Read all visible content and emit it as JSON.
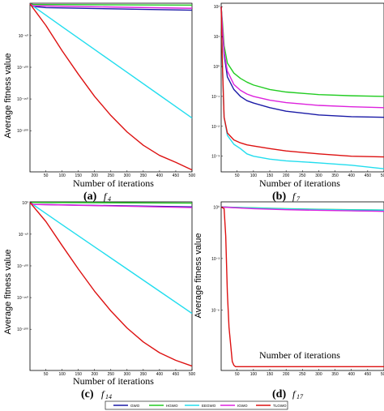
{
  "colors": {
    "GWO": "#1a1aa6",
    "HGWO": "#22cc22",
    "EEGWO": "#22ddee",
    "IGWO": "#dd22dd",
    "TLGWO": "#dd1111"
  },
  "legend": [
    "GWO",
    "HGWO",
    "EEGWO",
    "IGWO",
    "TLGWO"
  ],
  "chart_data": [
    {
      "type": "line",
      "panel": "a",
      "caption_letter": "(a)",
      "caption_func": "f",
      "caption_sub": "4",
      "xlabel": "Number of iterations",
      "ylabel": "Average fitness value",
      "xlim": [
        1,
        500
      ],
      "xticks": [
        50,
        100,
        150,
        200,
        250,
        300,
        350,
        400,
        450,
        500
      ],
      "yscale": "log",
      "ylim": [
        1e-265,
        10.0
      ],
      "yticks": [
        {
          "v": 1e-50,
          "label": "10⁻⁵⁰"
        },
        {
          "v": 1e-100,
          "label": "10⁻¹⁰⁰"
        },
        {
          "v": 1e-150,
          "label": "10⁻¹⁵⁰"
        },
        {
          "v": 1e-200,
          "label": "10⁻²⁰⁰"
        }
      ],
      "series": [
        {
          "name": "GWO",
          "x": [
            1,
            10,
            50,
            500
          ],
          "y": [
            1.0,
            0.0001,
            1e-06,
            1e-10
          ]
        },
        {
          "name": "HGWO",
          "x": [
            1,
            10,
            500
          ],
          "y": [
            1.0,
            0.1,
            0.01
          ]
        },
        {
          "name": "EEGWO",
          "x": [
            1,
            100,
            200,
            300,
            400,
            500
          ],
          "y": [
            1.0,
            1e-36,
            1e-72,
            1e-108,
            1e-144,
            1e-180
          ]
        },
        {
          "name": "IGWO",
          "x": [
            1,
            10,
            500
          ],
          "y": [
            1.0,
            0.001,
            1e-07
          ]
        },
        {
          "name": "TLGWO",
          "x": [
            1,
            50,
            100,
            150,
            200,
            250,
            300,
            350,
            400,
            450,
            500
          ],
          "y": [
            1.0,
            1e-34,
            1e-74,
            1e-111,
            1e-146,
            1e-176,
            1e-202,
            1e-223,
            1e-239,
            1e-250,
            1e-262
          ]
        }
      ]
    },
    {
      "type": "line",
      "panel": "b",
      "caption_letter": "(b)",
      "caption_func": "f",
      "caption_sub": "7",
      "xlabel": "Number of iterations",
      "ylabel": "",
      "xlim": [
        1,
        500
      ],
      "xticks": [
        50,
        100,
        150,
        200,
        250,
        300,
        350,
        400,
        450,
        500
      ],
      "yscale": "log",
      "ylim": [
        0.0003,
        130.0
      ],
      "yticks": [
        {
          "v": 100.0,
          "label": "10²"
        },
        {
          "v": 10.0,
          "label": "10¹"
        },
        {
          "v": 1.0,
          "label": "10⁰"
        },
        {
          "v": 0.1,
          "label": "10⁻¹"
        },
        {
          "v": 0.01,
          "label": "10⁻²"
        },
        {
          "v": 0.001,
          "label": "10⁻³"
        }
      ],
      "series": [
        {
          "name": "GWO",
          "x": [
            1,
            5,
            10,
            20,
            40,
            60,
            80,
            100,
            150,
            200,
            300,
            400,
            500
          ],
          "y": [
            100,
            20,
            2.5,
            0.45,
            0.17,
            0.1,
            0.072,
            0.06,
            0.042,
            0.032,
            0.024,
            0.021,
            0.02
          ]
        },
        {
          "name": "HGWO",
          "x": [
            1,
            5,
            10,
            20,
            40,
            60,
            80,
            100,
            150,
            200,
            300,
            400,
            500
          ],
          "y": [
            100,
            30,
            5,
            1.3,
            0.6,
            0.4,
            0.3,
            0.24,
            0.17,
            0.14,
            0.115,
            0.105,
            0.1
          ]
        },
        {
          "name": "EEGWO",
          "x": [
            1,
            5,
            10,
            20,
            40,
            60,
            80,
            100,
            150,
            200,
            300,
            400,
            500
          ],
          "y": [
            100,
            1,
            0.02,
            0.005,
            0.0025,
            0.0018,
            0.0012,
            0.001,
            0.0008,
            0.0007,
            0.0006,
            0.0005,
            0.00038
          ]
        },
        {
          "name": "IGWO",
          "x": [
            1,
            5,
            10,
            20,
            40,
            60,
            80,
            100,
            150,
            200,
            300,
            400,
            500
          ],
          "y": [
            100,
            20,
            3,
            0.7,
            0.25,
            0.16,
            0.12,
            0.1,
            0.075,
            0.062,
            0.05,
            0.045,
            0.042
          ]
        },
        {
          "name": "TLGWO",
          "x": [
            1,
            5,
            10,
            20,
            40,
            60,
            80,
            100,
            150,
            200,
            300,
            400,
            500
          ],
          "y": [
            100,
            1,
            0.02,
            0.006,
            0.0035,
            0.0028,
            0.0024,
            0.0022,
            0.0018,
            0.0015,
            0.0012,
            0.001,
            0.00095
          ]
        }
      ]
    },
    {
      "type": "line",
      "panel": "c",
      "caption_letter": "(c)",
      "caption_func": "f",
      "caption_sub": "14",
      "xlabel": "Number of iterations",
      "ylabel": "Average fitness value",
      "xlim": [
        1,
        500
      ],
      "xticks": [
        50,
        100,
        150,
        200,
        250,
        300,
        350,
        400,
        450,
        500
      ],
      "yscale": "log",
      "ylim": [
        1e-265,
        10.0
      ],
      "yticks": [
        {
          "v": 1.0,
          "label": "10⁰"
        },
        {
          "v": 1e-50,
          "label": "10⁻⁵⁰"
        },
        {
          "v": 1e-100,
          "label": "10⁻¹⁰⁰"
        },
        {
          "v": 1e-150,
          "label": "10⁻¹⁵⁰"
        },
        {
          "v": 1e-200,
          "label": "10⁻²⁰⁰"
        }
      ],
      "series": [
        {
          "name": "GWO",
          "x": [
            1,
            10,
            500
          ],
          "y": [
            1.0,
            0.001,
            1e-07
          ]
        },
        {
          "name": "HGWO",
          "x": [
            1,
            500
          ],
          "y": [
            1.0,
            0.1
          ]
        },
        {
          "name": "EEGWO",
          "x": [
            1,
            100,
            200,
            300,
            400,
            500
          ],
          "y": [
            1.0,
            1e-35,
            1e-70,
            1e-105,
            1e-140,
            1e-175
          ]
        },
        {
          "name": "IGWO",
          "x": [
            1,
            10,
            500
          ],
          "y": [
            1.0,
            0.001,
            1e-08
          ]
        },
        {
          "name": "TLGWO",
          "x": [
            1,
            50,
            100,
            150,
            200,
            250,
            300,
            350,
            400,
            450,
            500
          ],
          "y": [
            1.0,
            1e-30,
            1e-68,
            1e-105,
            1e-140,
            1e-171,
            1e-198,
            1e-220,
            1e-237,
            1e-249,
            1e-258
          ]
        }
      ]
    },
    {
      "type": "line",
      "panel": "d",
      "caption_letter": "(d)",
      "caption_func": "f",
      "caption_sub": "17",
      "xlabel": "Number of iterations",
      "ylabel": "Average fitness value",
      "xlim": [
        1,
        500
      ],
      "xticks": [
        50,
        100,
        150,
        200,
        250,
        300,
        350,
        400,
        450,
        500
      ],
      "yscale": "log",
      "ylim": [
        3e-10,
        2
      ],
      "yticks": [
        {
          "v": 1.0,
          "label": "10⁰"
        },
        {
          "v": 0.001,
          "label": "10⁻³"
        },
        {
          "v": 1e-06,
          "label": "10⁻⁶"
        }
      ],
      "series": [
        {
          "name": "GWO",
          "x": [
            1,
            100,
            200,
            300,
            400,
            500
          ],
          "y": [
            1,
            0.85,
            0.75,
            0.68,
            0.62,
            0.58
          ]
        },
        {
          "name": "HGWO",
          "x": [
            1,
            100,
            200,
            300,
            400,
            500
          ],
          "y": [
            1,
            0.9,
            0.8,
            0.74,
            0.7,
            0.67
          ]
        },
        {
          "name": "EEGWO",
          "x": [
            1,
            100,
            200,
            300,
            400,
            500
          ],
          "y": [
            1,
            0.88,
            0.78,
            0.72,
            0.68,
            0.66
          ]
        },
        {
          "name": "IGWO",
          "x": [
            1,
            100,
            200,
            300,
            400,
            500
          ],
          "y": [
            1,
            0.8,
            0.7,
            0.64,
            0.6,
            0.56
          ]
        },
        {
          "name": "TLGWO",
          "x": [
            1,
            10,
            15,
            20,
            25,
            30,
            35,
            40,
            45,
            500
          ],
          "y": [
            1,
            0.8,
            0.02,
            1e-05,
            1e-07,
            1e-08,
            1e-09,
            6e-10,
            5e-10,
            5e-10
          ]
        }
      ]
    }
  ]
}
